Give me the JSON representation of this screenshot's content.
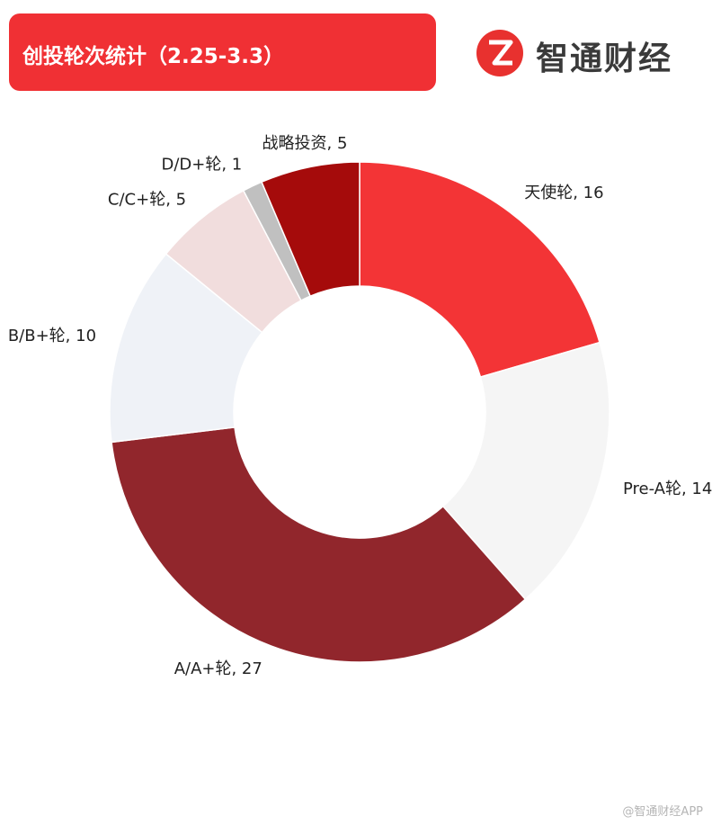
{
  "header": {
    "title": "创投轮次统计（2.25-3.3）"
  },
  "brand": {
    "name": "智通财经",
    "logo_glyph": "Z",
    "logo_color": "#e8312f"
  },
  "watermark": "@智通财经APP",
  "chart_data": {
    "type": "pie",
    "donut": true,
    "direction": "clockwise",
    "start": "top",
    "slices": [
      {
        "label": "天使轮",
        "value": 16,
        "color": "#f33436",
        "display": "天使轮, 16"
      },
      {
        "label": "Pre-A轮",
        "value": 14,
        "color": "#f5f5f5",
        "display": "Pre-A轮, 14"
      },
      {
        "label": "A/A+轮",
        "value": 27,
        "color": "#91262c",
        "display": "A/A+轮, 27"
      },
      {
        "label": "B/B+轮",
        "value": 10,
        "color": "#eff2f7",
        "display": "B/B+轮, 10"
      },
      {
        "label": "C/C+轮",
        "value": 5,
        "color": "#f1dddd",
        "display": "C/C+轮, 5"
      },
      {
        "label": "D/D+轮",
        "value": 1,
        "color": "#c0c0c0",
        "display": "D/D+轮, 1"
      },
      {
        "label": "战略投资",
        "value": 5,
        "color": "#a50b0b",
        "display": "战略投资, 5"
      }
    ]
  }
}
